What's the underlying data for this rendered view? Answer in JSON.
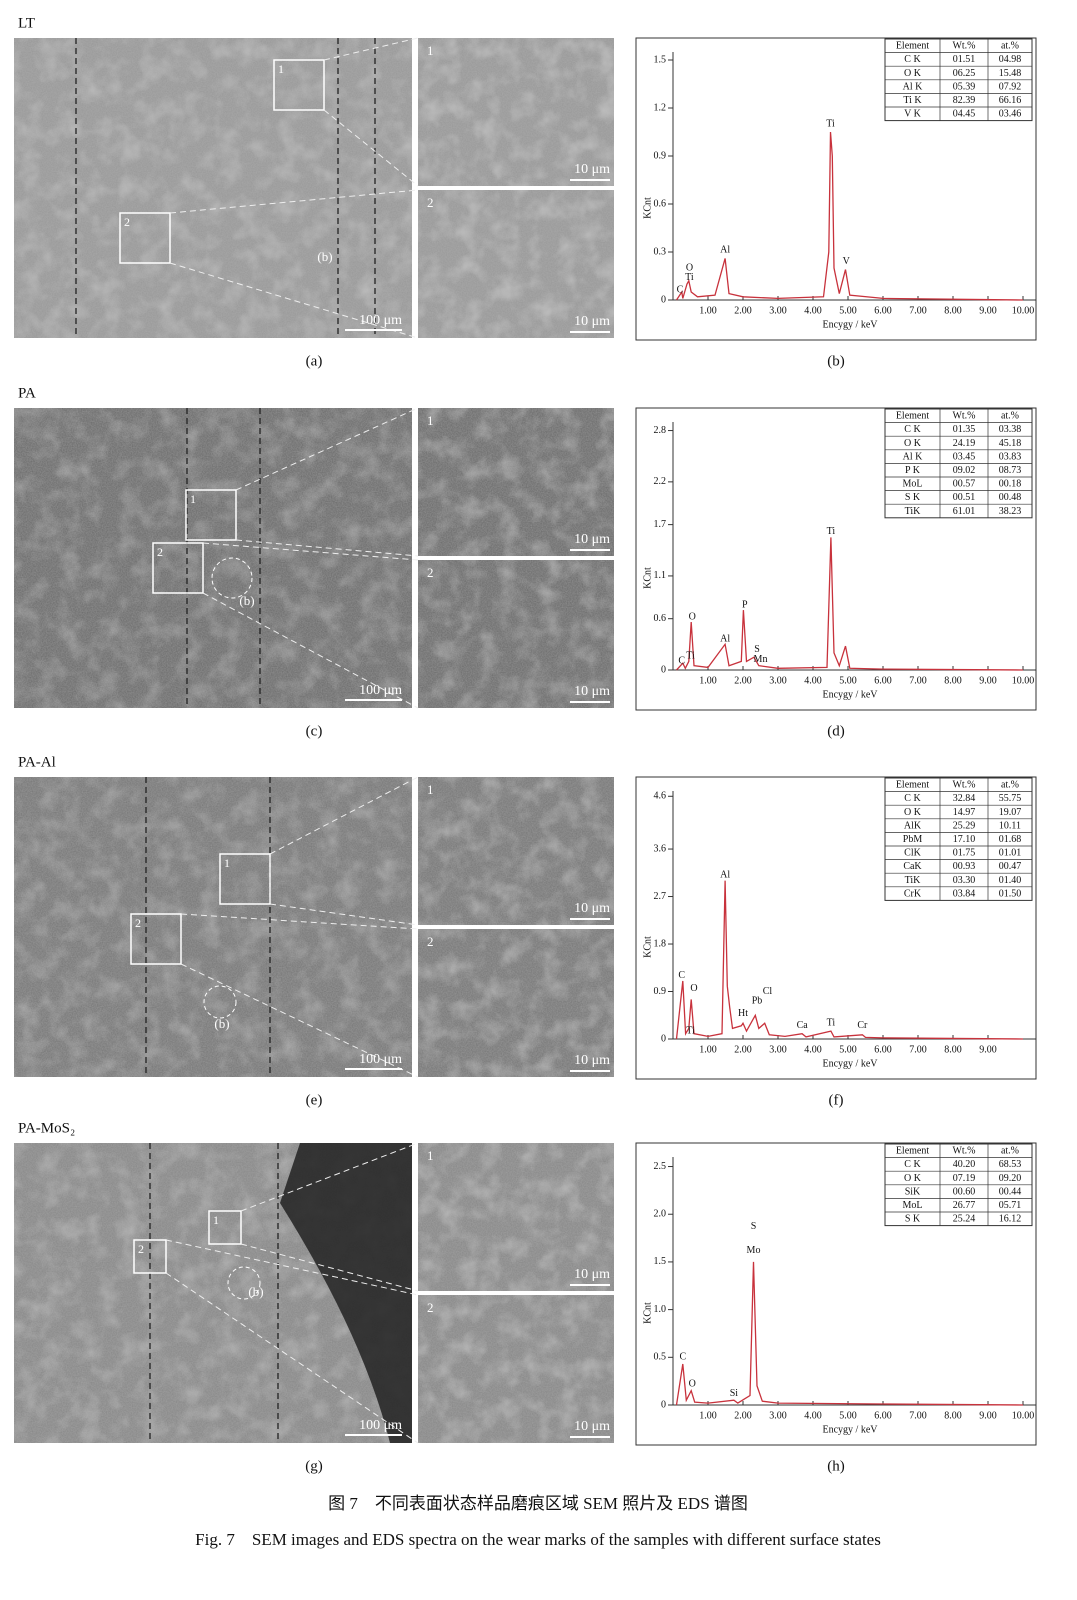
{
  "figure": {
    "rows": [
      {
        "sample": "LT",
        "sem_caption": "(a)",
        "eds_caption": "(b)",
        "sem": {
          "scale": "100 μm",
          "marker": "(b)",
          "boxes": [
            "1",
            "2"
          ],
          "insets": [
            {
              "label": "1",
              "scale": "10 μm"
            },
            {
              "label": "2",
              "scale": "10 μm"
            }
          ]
        },
        "eds": {
          "table": {
            "header": [
              "Element",
              "Wt.%",
              "at.%"
            ],
            "rows": [
              [
                "C K",
                "01.51",
                "04.98"
              ],
              [
                "O K",
                "06.25",
                "15.48"
              ],
              [
                "Al K",
                "05.39",
                "07.92"
              ],
              [
                "Ti K",
                "82.39",
                "66.16"
              ],
              [
                "V K",
                "04.45",
                "03.46"
              ]
            ]
          },
          "chart": {
            "type": "line",
            "ylabel": "KCnt",
            "xlabel": "Encygy / keV",
            "color": "#c8323c",
            "xlim": [
              0,
              10
            ],
            "ylim": [
              0,
              1.55
            ],
            "xticks": [
              {
                "value": 1,
                "label": "1.00"
              },
              {
                "value": 2,
                "label": "2.00"
              },
              {
                "value": 3,
                "label": "3.00"
              },
              {
                "value": 4,
                "label": "4.00"
              },
              {
                "value": 5,
                "label": "5.00"
              },
              {
                "value": 6,
                "label": "6.00"
              },
              {
                "value": 7,
                "label": "7.00"
              },
              {
                "value": 8,
                "label": "8.00"
              },
              {
                "value": 9,
                "label": "9.00"
              },
              {
                "value": 10,
                "label": "10.00"
              }
            ],
            "yticks": [
              0,
              0.3,
              0.6,
              0.9,
              1.2,
              1.5
            ],
            "x": [
              0.1,
              0.25,
              0.28,
              0.4,
              0.45,
              0.52,
              0.7,
              1.2,
              1.49,
              1.6,
              2,
              3,
              4.3,
              4.45,
              4.5,
              4.55,
              4.6,
              4.75,
              4.93,
              5.05,
              6,
              10
            ],
            "y": [
              0,
              0.05,
              0.01,
              0.1,
              0.12,
              0.05,
              0.02,
              0.03,
              0.26,
              0.04,
              0.02,
              0.01,
              0.02,
              0.3,
              1.05,
              0.9,
              0.2,
              0.04,
              0.19,
              0.03,
              0.01,
              0
            ],
            "annotations": [
              {
                "text": "C",
                "x": 0.2,
                "y": 0.06
              },
              {
                "text": "O",
                "x": 0.47,
                "y": 0.2
              },
              {
                "text": "Ti",
                "x": 0.47,
                "y": 0.14
              },
              {
                "text": "Al",
                "x": 1.49,
                "y": 0.31
              },
              {
                "text": "Ti",
                "x": 4.5,
                "y": 1.1
              },
              {
                "text": "V",
                "x": 4.95,
                "y": 0.24
              }
            ]
          }
        }
      },
      {
        "sample": "PA",
        "sem_caption": "(c)",
        "eds_caption": "(d)",
        "sem": {
          "scale": "100 μm",
          "marker": "(b)",
          "boxes": [
            "1",
            "2"
          ],
          "insets": [
            {
              "label": "1",
              "scale": "10 μm"
            },
            {
              "label": "2",
              "scale": "10 μm"
            }
          ]
        },
        "eds": {
          "table": {
            "header": [
              "Element",
              "Wt.%",
              "at.%"
            ],
            "rows": [
              [
                "C K",
                "01.35",
                "03.38"
              ],
              [
                "O K",
                "24.19",
                "45.18"
              ],
              [
                "Al K",
                "03.45",
                "03.83"
              ],
              [
                "P K",
                "09.02",
                "08.73"
              ],
              [
                "MoL",
                "00.57",
                "00.18"
              ],
              [
                "S K",
                "00.51",
                "00.48"
              ],
              [
                "TiK",
                "61.01",
                "38.23"
              ]
            ]
          },
          "chart": {
            "type": "line",
            "ylabel": "KCnt",
            "xlabel": "Encygy / keV",
            "color": "#c8323c",
            "xlim": [
              0,
              10
            ],
            "ylim": [
              0,
              2.9
            ],
            "xticks": [
              {
                "value": 1,
                "label": "1.00"
              },
              {
                "value": 2,
                "label": "2.00"
              },
              {
                "value": 3,
                "label": "3.00"
              },
              {
                "value": 4,
                "label": "4.00"
              },
              {
                "value": 5,
                "label": "5.00"
              },
              {
                "value": 6,
                "label": "6.00"
              },
              {
                "value": 7,
                "label": "7.00"
              },
              {
                "value": 8,
                "label": "8.00"
              },
              {
                "value": 9,
                "label": "9.00"
              },
              {
                "value": 10,
                "label": "10.00"
              }
            ],
            "yticks": [
              0,
              0.6,
              1.1,
              1.7,
              2.2,
              2.8
            ],
            "x": [
              0.1,
              0.28,
              0.35,
              0.45,
              0.52,
              0.6,
              1,
              1.49,
              1.6,
              1.95,
              2.01,
              2.1,
              2.31,
              2.45,
              3,
              4.4,
              4.51,
              4.6,
              4.75,
              4.93,
              5.05,
              6,
              10
            ],
            "y": [
              0,
              0.08,
              0.02,
              0.1,
              0.56,
              0.05,
              0.03,
              0.3,
              0.05,
              0.1,
              0.7,
              0.1,
              0.15,
              0.05,
              0.02,
              0.03,
              1.55,
              0.2,
              0.05,
              0.28,
              0.02,
              0.01,
              0
            ],
            "annotations": [
              {
                "text": "C",
                "x": 0.25,
                "y": 0.1
              },
              {
                "text": "Ti",
                "x": 0.5,
                "y": 0.16
              },
              {
                "text": "O",
                "x": 0.55,
                "y": 0.62
              },
              {
                "text": "Al",
                "x": 1.49,
                "y": 0.36
              },
              {
                "text": "P",
                "x": 2.05,
                "y": 0.76
              },
              {
                "text": "S",
                "x": 2.4,
                "y": 0.24
              },
              {
                "text": "Mn",
                "x": 2.5,
                "y": 0.12
              },
              {
                "text": "Ti",
                "x": 4.51,
                "y": 1.62
              }
            ]
          }
        }
      },
      {
        "sample": "PA-Al",
        "sem_caption": "(e)",
        "eds_caption": "(f)",
        "sem": {
          "scale": "100 μm",
          "marker": "(b)",
          "boxes": [
            "1",
            "2"
          ],
          "insets": [
            {
              "label": "1",
              "scale": "10 μm"
            },
            {
              "label": "2",
              "scale": "10 μm"
            }
          ]
        },
        "eds": {
          "table": {
            "header": [
              "Element",
              "Wt.%",
              "at.%"
            ],
            "rows": [
              [
                "C K",
                "32.84",
                "55.75"
              ],
              [
                "O K",
                "14.97",
                "19.07"
              ],
              [
                "AlK",
                "25.29",
                "10.11"
              ],
              [
                "PbM",
                "17.10",
                "01.68"
              ],
              [
                "ClK",
                "01.75",
                "01.01"
              ],
              [
                "CaK",
                "00.93",
                "00.47"
              ],
              [
                "TiK",
                "03.30",
                "01.40"
              ],
              [
                "CrK",
                "03.84",
                "01.50"
              ]
            ]
          },
          "chart": {
            "type": "line",
            "ylabel": "KCnt",
            "xlabel": "Encygy / keV",
            "color": "#c8323c",
            "xlim": [
              0,
              10
            ],
            "ylim": [
              0,
              4.7
            ],
            "xticks": [
              {
                "value": 1,
                "label": "1.00"
              },
              {
                "value": 2,
                "label": "2.00"
              },
              {
                "value": 3,
                "label": "3.00"
              },
              {
                "value": 4,
                "label": "4.00"
              },
              {
                "value": 5,
                "label": "5.00"
              },
              {
                "value": 6,
                "label": "6.00"
              },
              {
                "value": 7,
                "label": "7.00"
              },
              {
                "value": 8,
                "label": "8.00"
              },
              {
                "value": 9,
                "label": "9.00"
              }
            ],
            "yticks": [
              0,
              0.9,
              1.8,
              2.7,
              3.6,
              4.6
            ],
            "x": [
              0.1,
              0.28,
              0.36,
              0.45,
              0.52,
              0.6,
              1,
              1.4,
              1.49,
              1.55,
              1.62,
              1.7,
              1.95,
              2.0,
              2.1,
              2.35,
              2.45,
              2.62,
              2.75,
              3.2,
              3.69,
              3.8,
              4.51,
              4.6,
              5.41,
              5.5,
              6,
              10
            ],
            "y": [
              0,
              1.1,
              0.1,
              0.2,
              0.75,
              0.1,
              0.05,
              0.1,
              3.0,
              1.0,
              0.6,
              0.2,
              0.25,
              0.3,
              0.15,
              0.45,
              0.2,
              0.3,
              0.08,
              0.05,
              0.1,
              0.04,
              0.15,
              0.04,
              0.08,
              0.03,
              0.02,
              0
            ],
            "annotations": [
              {
                "text": "C",
                "x": 0.25,
                "y": 1.2
              },
              {
                "text": "O",
                "x": 0.6,
                "y": 0.95
              },
              {
                "text": "Ti",
                "x": 0.5,
                "y": 0.15
              },
              {
                "text": "Al",
                "x": 1.49,
                "y": 3.1
              },
              {
                "text": "Ht",
                "x": 2.0,
                "y": 0.48
              },
              {
                "text": "Pb",
                "x": 2.4,
                "y": 0.72
              },
              {
                "text": "Cl",
                "x": 2.7,
                "y": 0.9
              },
              {
                "text": "Ca",
                "x": 3.69,
                "y": 0.25
              },
              {
                "text": "Ti",
                "x": 4.51,
                "y": 0.3
              },
              {
                "text": "Cr",
                "x": 5.41,
                "y": 0.25
              }
            ]
          }
        }
      },
      {
        "sample": "PA-MoS₂",
        "sem_caption": "(g)",
        "eds_caption": "(h)",
        "sem": {
          "scale": "100 μm",
          "marker": "(b)",
          "boxes": [
            "1",
            "2"
          ],
          "insets": [
            {
              "label": "1",
              "scale": "10 μm"
            },
            {
              "label": "2",
              "scale": "10 μm"
            }
          ]
        },
        "eds": {
          "table": {
            "header": [
              "Element",
              "Wt.%",
              "at.%"
            ],
            "rows": [
              [
                "C K",
                "40.20",
                "68.53"
              ],
              [
                "O K",
                "07.19",
                "09.20"
              ],
              [
                "SiK",
                "00.60",
                "00.44"
              ],
              [
                "MoL",
                "26.77",
                "05.71"
              ],
              [
                "S K",
                "25.24",
                "16.12"
              ]
            ]
          },
          "chart": {
            "type": "line",
            "ylabel": "KCnt",
            "xlabel": "Encygy / keV",
            "color": "#c8323c",
            "xlim": [
              0,
              10
            ],
            "ylim": [
              0,
              2.6
            ],
            "xticks": [
              {
                "value": 1,
                "label": "1.00"
              },
              {
                "value": 2,
                "label": "2.00"
              },
              {
                "value": 3,
                "label": "3.00"
              },
              {
                "value": 4,
                "label": "4.00"
              },
              {
                "value": 5,
                "label": "5.00"
              },
              {
                "value": 6,
                "label": "6.00"
              },
              {
                "value": 7,
                "label": "7.00"
              },
              {
                "value": 8,
                "label": "8.00"
              },
              {
                "value": 9,
                "label": "9.00"
              },
              {
                "value": 10,
                "label": "10.00"
              }
            ],
            "yticks": [
              0,
              0.5,
              {
                "value": 1,
                "label": "1.0"
              },
              1.5,
              {
                "value": 2,
                "label": "2.0"
              },
              2.5
            ],
            "x": [
              0.1,
              0.28,
              0.38,
              0.52,
              0.62,
              1,
              1.74,
              1.85,
              2.2,
              2.3,
              2.4,
              2.55,
              3,
              6,
              10
            ],
            "y": [
              0,
              0.43,
              0.05,
              0.15,
              0.03,
              0.02,
              0.05,
              0.02,
              0.1,
              1.5,
              0.2,
              0.04,
              0.02,
              0.01,
              0
            ],
            "annotations": [
              {
                "text": "C",
                "x": 0.28,
                "y": 0.5
              },
              {
                "text": "O",
                "x": 0.55,
                "y": 0.22
              },
              {
                "text": "Si",
                "x": 1.74,
                "y": 0.12
              },
              {
                "text": "S",
                "x": 2.3,
                "y": 1.87
              },
              {
                "text": "Mo",
                "x": 2.3,
                "y": 1.62
              }
            ]
          }
        }
      }
    ],
    "caption_cn": "图 7　不同表面状态样品磨痕区域 SEM 照片及 EDS 谱图",
    "caption_en": "Fig. 7　SEM images and EDS spectra on the wear marks of the samples with different surface states"
  }
}
